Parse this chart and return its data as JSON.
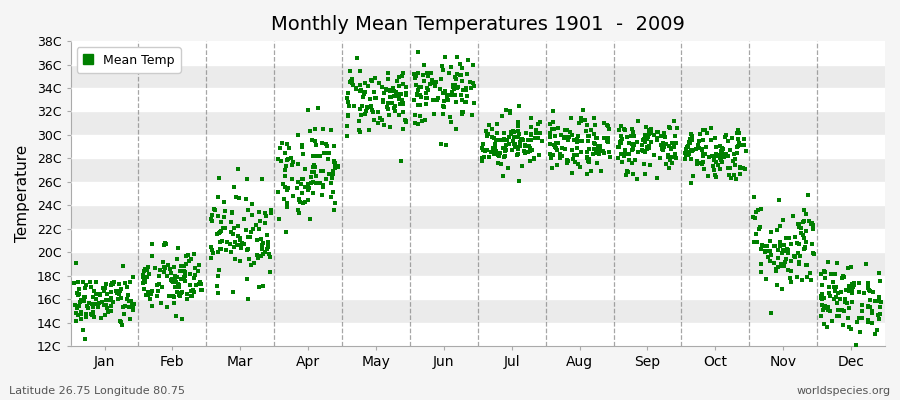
{
  "title": "Monthly Mean Temperatures 1901  -  2009",
  "ylabel": "Temperature",
  "ytick_labels": [
    "12C",
    "14C",
    "16C",
    "18C",
    "20C",
    "22C",
    "24C",
    "26C",
    "28C",
    "30C",
    "32C",
    "34C",
    "36C",
    "38C"
  ],
  "ytick_values": [
    12,
    14,
    16,
    18,
    20,
    22,
    24,
    26,
    28,
    30,
    32,
    34,
    36,
    38
  ],
  "ylim": [
    12,
    38
  ],
  "months": [
    "Jan",
    "Feb",
    "Mar",
    "Apr",
    "May",
    "Jun",
    "Jul",
    "Aug",
    "Sep",
    "Oct",
    "Nov",
    "Dec"
  ],
  "dot_color": "#008000",
  "bg_color": "#f5f5f5",
  "band_colors": [
    "#ffffff",
    "#ebebeb"
  ],
  "legend_label": "Mean Temp",
  "subtitle_left": "Latitude 26.75 Longitude 80.75",
  "subtitle_right": "worldspecies.org",
  "n_years": 109,
  "mean_temps": [
    15.8,
    17.5,
    21.5,
    27.0,
    33.0,
    33.5,
    29.5,
    29.0,
    29.0,
    28.5,
    20.5,
    16.0
  ],
  "std_temps": [
    1.2,
    1.5,
    2.0,
    2.0,
    1.5,
    1.5,
    1.2,
    1.2,
    1.2,
    1.2,
    2.0,
    1.5
  ],
  "seed": 42,
  "dashed_line_color": "#808080",
  "grid_line_color": "#ffffff"
}
